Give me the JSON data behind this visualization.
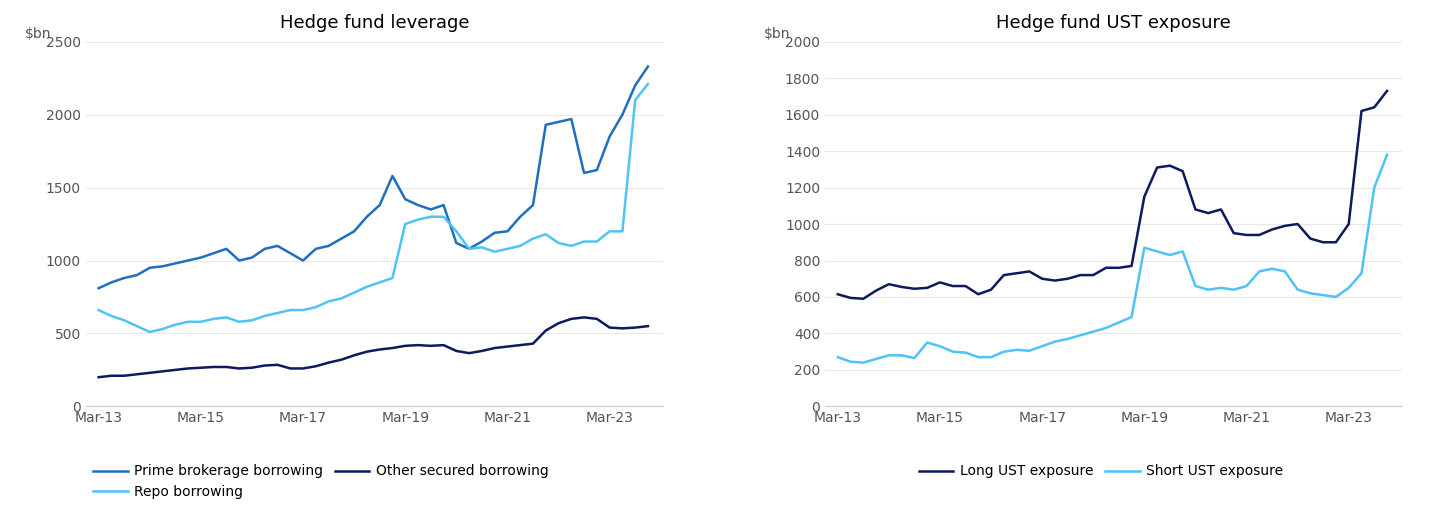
{
  "chart1": {
    "title": "Hedge fund leverage",
    "ylabel": "$bn",
    "ylim": [
      0,
      2500
    ],
    "yticks": [
      0,
      500,
      1000,
      1500,
      2000,
      2500
    ],
    "xticks_labels": [
      "Mar-13",
      "Mar-15",
      "Mar-17",
      "Mar-19",
      "Mar-21",
      "Mar-23"
    ],
    "series": {
      "prime": {
        "label": "Prime brokerage borrowing",
        "color": "#1F6FBF",
        "x": [
          2013.25,
          2013.5,
          2013.75,
          2014.0,
          2014.25,
          2014.5,
          2014.75,
          2015.0,
          2015.25,
          2015.5,
          2015.75,
          2016.0,
          2016.25,
          2016.5,
          2016.75,
          2017.0,
          2017.25,
          2017.5,
          2017.75,
          2018.0,
          2018.25,
          2018.5,
          2018.75,
          2019.0,
          2019.25,
          2019.5,
          2019.75,
          2020.0,
          2020.25,
          2020.5,
          2020.75,
          2021.0,
          2021.25,
          2021.5,
          2021.75,
          2022.0,
          2022.25,
          2022.5,
          2022.75,
          2023.0,
          2023.25,
          2023.5,
          2023.75,
          2024.0
        ],
        "y": [
          810,
          850,
          880,
          900,
          950,
          960,
          980,
          1000,
          1020,
          1050,
          1080,
          1000,
          1020,
          1080,
          1100,
          1050,
          1000,
          1080,
          1100,
          1150,
          1200,
          1300,
          1380,
          1580,
          1420,
          1380,
          1350,
          1380,
          1120,
          1080,
          1130,
          1190,
          1200,
          1300,
          1380,
          1930,
          1950,
          1970,
          1600,
          1620,
          1850,
          2000,
          2200,
          2330
        ]
      },
      "repo": {
        "label": "Repo borrowing",
        "color": "#4FC3F7",
        "x": [
          2013.25,
          2013.5,
          2013.75,
          2014.0,
          2014.25,
          2014.5,
          2014.75,
          2015.0,
          2015.25,
          2015.5,
          2015.75,
          2016.0,
          2016.25,
          2016.5,
          2016.75,
          2017.0,
          2017.25,
          2017.5,
          2017.75,
          2018.0,
          2018.25,
          2018.5,
          2018.75,
          2019.0,
          2019.25,
          2019.5,
          2019.75,
          2020.0,
          2020.25,
          2020.5,
          2020.75,
          2021.0,
          2021.25,
          2021.5,
          2021.75,
          2022.0,
          2022.25,
          2022.5,
          2022.75,
          2023.0,
          2023.25,
          2023.5,
          2023.75,
          2024.0
        ],
        "y": [
          660,
          620,
          590,
          550,
          510,
          530,
          560,
          580,
          580,
          600,
          610,
          580,
          590,
          620,
          640,
          660,
          660,
          680,
          720,
          740,
          780,
          820,
          850,
          880,
          1250,
          1280,
          1300,
          1300,
          1200,
          1080,
          1090,
          1060,
          1080,
          1100,
          1150,
          1180,
          1120,
          1100,
          1130,
          1130,
          1200,
          1200,
          2100,
          2210
        ]
      },
      "other": {
        "label": "Other secured borrowing",
        "color": "#0D1B5E",
        "x": [
          2013.25,
          2013.5,
          2013.75,
          2014.0,
          2014.25,
          2014.5,
          2014.75,
          2015.0,
          2015.25,
          2015.5,
          2015.75,
          2016.0,
          2016.25,
          2016.5,
          2016.75,
          2017.0,
          2017.25,
          2017.5,
          2017.75,
          2018.0,
          2018.25,
          2018.5,
          2018.75,
          2019.0,
          2019.25,
          2019.5,
          2019.75,
          2020.0,
          2020.25,
          2020.5,
          2020.75,
          2021.0,
          2021.25,
          2021.5,
          2021.75,
          2022.0,
          2022.25,
          2022.5,
          2022.75,
          2023.0,
          2023.25,
          2023.5,
          2023.75,
          2024.0
        ],
        "y": [
          200,
          210,
          210,
          220,
          230,
          240,
          250,
          260,
          265,
          270,
          270,
          260,
          265,
          280,
          285,
          260,
          260,
          275,
          300,
          320,
          350,
          375,
          390,
          400,
          415,
          420,
          415,
          420,
          380,
          365,
          380,
          400,
          410,
          420,
          430,
          520,
          570,
          600,
          610,
          600,
          540,
          535,
          540,
          550
        ]
      }
    }
  },
  "chart2": {
    "title": "Hedge fund UST exposure",
    "ylabel": "$bn",
    "ylim": [
      0,
      2000
    ],
    "yticks": [
      0,
      200,
      400,
      600,
      800,
      1000,
      1200,
      1400,
      1600,
      1800,
      2000
    ],
    "xticks_labels": [
      "Mar-13",
      "Mar-15",
      "Mar-17",
      "Mar-19",
      "Mar-21",
      "Mar-23"
    ],
    "series": {
      "long": {
        "label": "Long UST exposure",
        "color": "#0D1B5E",
        "x": [
          2013.25,
          2013.5,
          2013.75,
          2014.0,
          2014.25,
          2014.5,
          2014.75,
          2015.0,
          2015.25,
          2015.5,
          2015.75,
          2016.0,
          2016.25,
          2016.5,
          2016.75,
          2017.0,
          2017.25,
          2017.5,
          2017.75,
          2018.0,
          2018.25,
          2018.5,
          2018.75,
          2019.0,
          2019.25,
          2019.5,
          2019.75,
          2020.0,
          2020.25,
          2020.5,
          2020.75,
          2021.0,
          2021.25,
          2021.5,
          2021.75,
          2022.0,
          2022.25,
          2022.5,
          2022.75,
          2023.0,
          2023.25,
          2023.5,
          2023.75,
          2024.0
        ],
        "y": [
          615,
          595,
          590,
          635,
          670,
          655,
          645,
          650,
          680,
          660,
          660,
          615,
          640,
          720,
          730,
          740,
          700,
          690,
          700,
          720,
          720,
          760,
          760,
          770,
          1150,
          1310,
          1320,
          1290,
          1080,
          1060,
          1080,
          950,
          940,
          940,
          970,
          990,
          1000,
          920,
          900,
          900,
          1000,
          1620,
          1640,
          1730
        ]
      },
      "short": {
        "label": "Short UST exposure",
        "color": "#4FC3F7",
        "x": [
          2013.25,
          2013.5,
          2013.75,
          2014.0,
          2014.25,
          2014.5,
          2014.75,
          2015.0,
          2015.25,
          2015.5,
          2015.75,
          2016.0,
          2016.25,
          2016.5,
          2016.75,
          2017.0,
          2017.25,
          2017.5,
          2017.75,
          2018.0,
          2018.25,
          2018.5,
          2018.75,
          2019.0,
          2019.25,
          2019.5,
          2019.75,
          2020.0,
          2020.25,
          2020.5,
          2020.75,
          2021.0,
          2021.25,
          2021.5,
          2021.75,
          2022.0,
          2022.25,
          2022.5,
          2022.75,
          2023.0,
          2023.25,
          2023.5,
          2023.75,
          2024.0
        ],
        "y": [
          270,
          245,
          240,
          260,
          280,
          280,
          265,
          350,
          330,
          300,
          295,
          270,
          270,
          300,
          310,
          305,
          330,
          355,
          370,
          390,
          410,
          430,
          460,
          490,
          870,
          850,
          830,
          850,
          660,
          640,
          650,
          640,
          660,
          740,
          755,
          740,
          640,
          620,
          610,
          600,
          650,
          730,
          1200,
          1380
        ]
      }
    }
  },
  "background_color": "#ffffff",
  "title_fontsize": 13,
  "label_fontsize": 10,
  "tick_fontsize": 10,
  "legend_fontsize": 10,
  "xtick_positions": [
    2013.25,
    2015.25,
    2017.25,
    2019.25,
    2021.25,
    2023.25
  ],
  "xlim": [
    2013.0,
    2024.3
  ]
}
